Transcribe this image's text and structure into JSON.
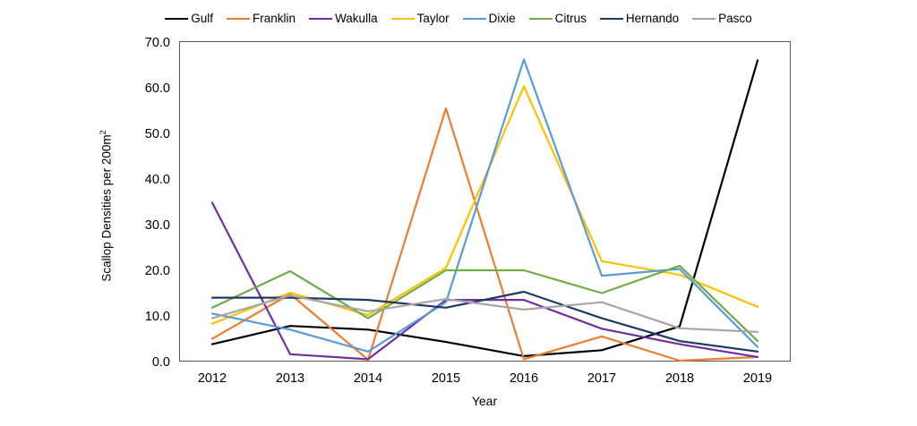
{
  "chart_data": {
    "type": "line",
    "title": "",
    "xlabel": "Year",
    "ylabel": "Scallop Densities per 200m²",
    "ylabel_base": "Scallop Densities per 200m",
    "ylabel_sup": "2",
    "categories": [
      "2012",
      "2013",
      "2014",
      "2015",
      "2016",
      "2017",
      "2018",
      "2019"
    ],
    "ylim": [
      0,
      70
    ],
    "ytick_labels": [
      "0.0",
      "10.0",
      "20.0",
      "30.0",
      "40.0",
      "50.0",
      "60.0",
      "70.0"
    ],
    "grid": false,
    "legend_position": "top",
    "plot_border_color": "#595959",
    "text_color": "#000000",
    "series": [
      {
        "name": "Gulf",
        "color": "#000000",
        "values": [
          3.8,
          7.8,
          7.0,
          4.3,
          1.2,
          2.5,
          7.7,
          66.0
        ]
      },
      {
        "name": "Franklin",
        "color": "#ED7D31",
        "values": [
          5.0,
          14.8,
          0.4,
          55.5,
          0.5,
          5.5,
          0.2,
          1.0
        ]
      },
      {
        "name": "Wakulla",
        "color": "#7030A0",
        "values": [
          34.8,
          1.6,
          0.5,
          13.5,
          13.5,
          7.2,
          3.8,
          1.0
        ]
      },
      {
        "name": "Taylor",
        "color": "#FFC000",
        "values": [
          8.3,
          15.1,
          10.2,
          20.5,
          60.3,
          22.0,
          19.0,
          12.0
        ]
      },
      {
        "name": "Dixie",
        "color": "#5B9BD5",
        "values": [
          10.5,
          7.0,
          2.2,
          13.0,
          66.2,
          18.8,
          20.3,
          3.2
        ]
      },
      {
        "name": "Citrus",
        "color": "#70AD47",
        "values": [
          11.8,
          19.8,
          9.5,
          20.0,
          20.0,
          15.0,
          21.0,
          4.5
        ]
      },
      {
        "name": "Hernando",
        "color": "#1F3864",
        "values": [
          14.0,
          14.0,
          13.5,
          11.8,
          15.3,
          9.5,
          4.5,
          2.2
        ]
      },
      {
        "name": "Pasco",
        "color": "#A6A6A6",
        "values": [
          9.5,
          14.5,
          11.0,
          13.7,
          11.4,
          13.0,
          7.3,
          6.5
        ]
      }
    ]
  }
}
